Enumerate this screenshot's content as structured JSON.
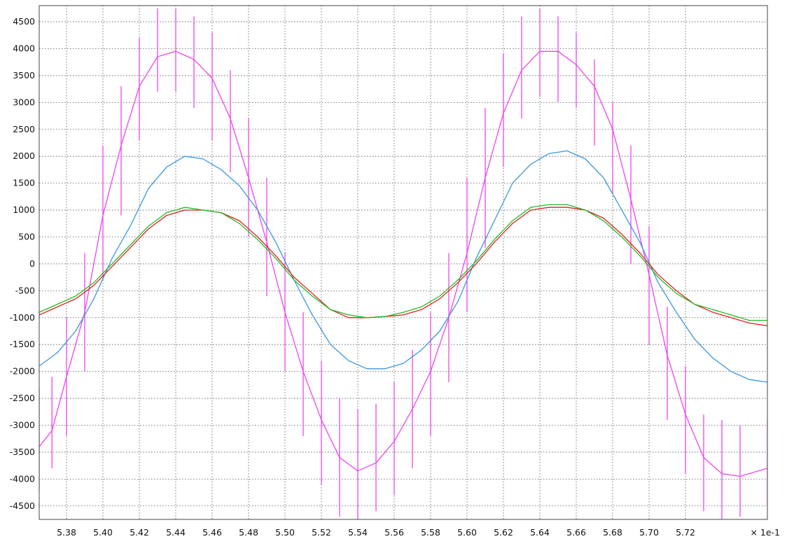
{
  "chart_data": {
    "type": "line",
    "title": "",
    "xlabel": "",
    "ylabel": "",
    "x_multiplier_label": "× 1e-1",
    "xlim": [
      5.365,
      5.765
    ],
    "ylim": [
      -4750,
      4800
    ],
    "grid": true,
    "x_ticks": [
      5.38,
      5.4,
      5.42,
      5.44,
      5.46,
      5.48,
      5.5,
      5.52,
      5.54,
      5.56,
      5.58,
      5.6,
      5.62,
      5.64,
      5.66,
      5.68,
      5.7,
      5.72
    ],
    "x_tick_labels": [
      "5.38",
      "5.40",
      "5.42",
      "5.44",
      "5.46",
      "5.48",
      "5.50",
      "5.52",
      "5.54",
      "5.56",
      "5.58",
      "5.60",
      "5.62",
      "5.64",
      "5.66",
      "5.68",
      "5.70",
      "5.72"
    ],
    "y_ticks": [
      4500,
      4000,
      3500,
      3000,
      2500,
      2000,
      1500,
      1000,
      500,
      0,
      -500,
      -1000,
      -1500,
      -2000,
      -2500,
      -3000,
      -3500,
      -4000,
      -4500
    ],
    "y_tick_labels": [
      "4500",
      "4000",
      "3500",
      "3000",
      "2500",
      "2000",
      "1500",
      "1000",
      "500",
      "0",
      "-500",
      "-1000",
      "-1500",
      "-2000",
      "-2500",
      "-3000",
      "-3500",
      "-4000",
      "-4500"
    ],
    "colors": {
      "magenta": "#ee44ee",
      "blue": "#3a96e0",
      "red": "#e02020",
      "green": "#22bb22",
      "grid": "#555555"
    },
    "series": [
      {
        "color": "magenta",
        "x": [
          5.365,
          5.372,
          5.38,
          5.39,
          5.4,
          5.41,
          5.42,
          5.43,
          5.44,
          5.45,
          5.46,
          5.47,
          5.48,
          5.49,
          5.5,
          5.51,
          5.52,
          5.53,
          5.54,
          5.55,
          5.56,
          5.57,
          5.58,
          5.59,
          5.6,
          5.61,
          5.62,
          5.63,
          5.64,
          5.65,
          5.66,
          5.67,
          5.68,
          5.69,
          5.7,
          5.71,
          5.72,
          5.73,
          5.74,
          5.75,
          5.765
        ],
        "y": [
          -3400,
          -3100,
          -2100,
          -900,
          900,
          2200,
          3300,
          3850,
          3950,
          3800,
          3450,
          2700,
          1600,
          400,
          -900,
          -2000,
          -2900,
          -3600,
          -3850,
          -3700,
          -3300,
          -2700,
          -2000,
          -1000,
          200,
          1600,
          2800,
          3600,
          3950,
          3950,
          3700,
          3300,
          2500,
          1200,
          -200,
          -1700,
          -2800,
          -3600,
          -3900,
          -3950,
          -3800
        ],
        "spike_top": [
          -2300,
          -2100,
          -1000,
          200,
          2200,
          3300,
          4200,
          4750,
          4750,
          4600,
          4300,
          3600,
          2700,
          1600,
          200,
          -900,
          -1800,
          -2500,
          -2700,
          -2600,
          -2200,
          -1600,
          -900,
          200,
          1600,
          2900,
          3900,
          4600,
          4750,
          4600,
          4300,
          3800,
          3000,
          2200,
          700,
          -800,
          -1900,
          -2800,
          -2900,
          -3000,
          -2900
        ],
        "spike_bottom": [
          -4200,
          -3800,
          -3200,
          -2000,
          -300,
          900,
          2300,
          3200,
          3200,
          2900,
          2300,
          1700,
          500,
          -600,
          -2000,
          -3200,
          -4100,
          -4700,
          -4750,
          -4600,
          -4300,
          -3800,
          -3200,
          -2200,
          -900,
          300,
          1800,
          2700,
          3100,
          3000,
          2900,
          2200,
          1300,
          0,
          -1500,
          -2900,
          -3900,
          -4600,
          -4750,
          -4700,
          -4500
        ]
      },
      {
        "color": "blue",
        "x": [
          5.365,
          5.375,
          5.385,
          5.395,
          5.405,
          5.415,
          5.425,
          5.435,
          5.445,
          5.455,
          5.465,
          5.475,
          5.485,
          5.495,
          5.505,
          5.515,
          5.525,
          5.535,
          5.545,
          5.555,
          5.565,
          5.575,
          5.585,
          5.595,
          5.605,
          5.615,
          5.625,
          5.635,
          5.645,
          5.655,
          5.665,
          5.675,
          5.685,
          5.695,
          5.705,
          5.715,
          5.725,
          5.735,
          5.745,
          5.755,
          5.765
        ],
        "y": [
          -1900,
          -1650,
          -1250,
          -650,
          100,
          700,
          1400,
          1800,
          2000,
          1950,
          1750,
          1450,
          1000,
          400,
          -300,
          -950,
          -1500,
          -1800,
          -1950,
          -1950,
          -1850,
          -1600,
          -1250,
          -700,
          100,
          800,
          1500,
          1850,
          2050,
          2100,
          1950,
          1600,
          1000,
          400,
          -350,
          -900,
          -1400,
          -1750,
          -2000,
          -2150,
          -2200
        ]
      },
      {
        "color": "red",
        "x": [
          5.365,
          5.375,
          5.385,
          5.395,
          5.405,
          5.415,
          5.425,
          5.435,
          5.445,
          5.455,
          5.465,
          5.475,
          5.485,
          5.495,
          5.505,
          5.515,
          5.525,
          5.535,
          5.545,
          5.555,
          5.565,
          5.575,
          5.585,
          5.595,
          5.605,
          5.615,
          5.625,
          5.635,
          5.645,
          5.655,
          5.665,
          5.675,
          5.685,
          5.695,
          5.705,
          5.715,
          5.725,
          5.735,
          5.745,
          5.755,
          5.765
        ],
        "y": [
          -950,
          -800,
          -650,
          -400,
          -50,
          300,
          650,
          900,
          1000,
          1000,
          950,
          800,
          500,
          150,
          -250,
          -550,
          -850,
          -1000,
          -1000,
          -980,
          -950,
          -850,
          -650,
          -350,
          0,
          400,
          750,
          1000,
          1050,
          1050,
          1000,
          850,
          550,
          200,
          -200,
          -500,
          -750,
          -900,
          -1000,
          -1100,
          -1150
        ]
      },
      {
        "color": "green",
        "x": [
          5.365,
          5.375,
          5.385,
          5.395,
          5.405,
          5.415,
          5.425,
          5.435,
          5.445,
          5.455,
          5.465,
          5.475,
          5.485,
          5.495,
          5.505,
          5.515,
          5.525,
          5.535,
          5.545,
          5.555,
          5.565,
          5.575,
          5.585,
          5.595,
          5.605,
          5.615,
          5.625,
          5.635,
          5.645,
          5.655,
          5.665,
          5.675,
          5.685,
          5.695,
          5.705,
          5.715,
          5.725,
          5.735,
          5.745,
          5.755,
          5.765
        ],
        "y": [
          -900,
          -750,
          -600,
          -350,
          0,
          350,
          700,
          950,
          1050,
          1000,
          950,
          750,
          450,
          100,
          -300,
          -600,
          -850,
          -950,
          -1000,
          -980,
          -900,
          -800,
          -600,
          -300,
          50,
          450,
          800,
          1050,
          1100,
          1100,
          1000,
          800,
          500,
          150,
          -250,
          -550,
          -750,
          -850,
          -950,
          -1050,
          -1050
        ]
      }
    ]
  }
}
